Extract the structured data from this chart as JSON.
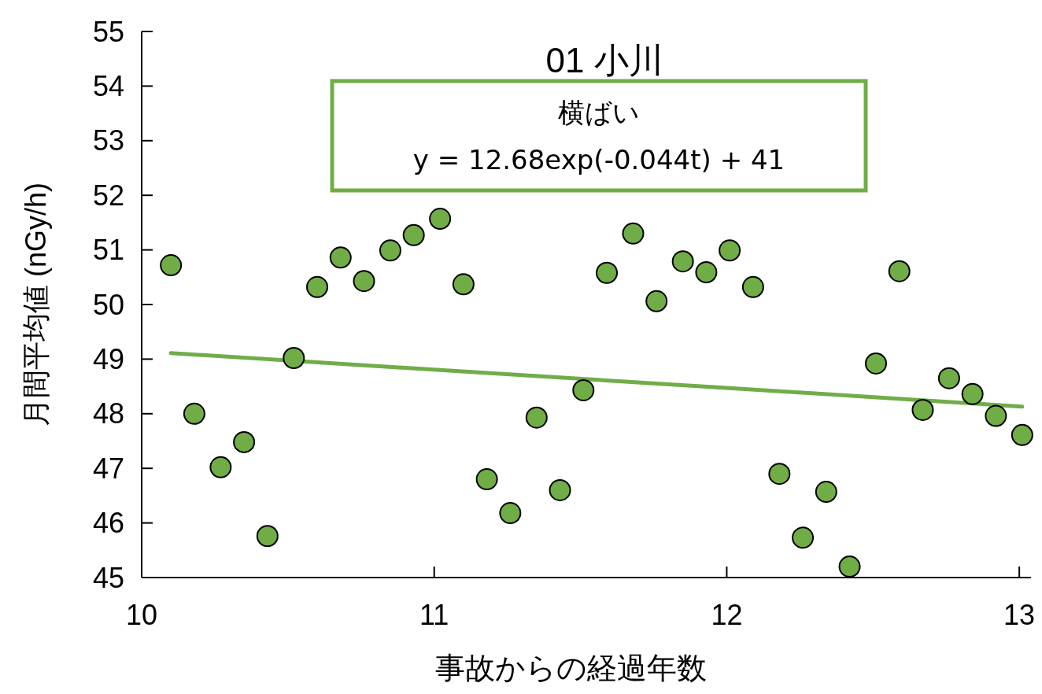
{
  "chart_data": {
    "type": "scatter",
    "title": "01 小川",
    "xlabel": "事故からの経過年数",
    "ylabel": "月間平均値 (nGy/h)",
    "annotations": [
      "横ばい",
      "y = 12.68exp(-0.044t) + 41"
    ],
    "xlim": [
      10,
      13.04
    ],
    "ylim": [
      45,
      55
    ],
    "xticks": [
      10,
      11,
      12,
      13
    ],
    "yticks": [
      45,
      46,
      47,
      48,
      49,
      50,
      51,
      52,
      53,
      54,
      55
    ],
    "grid": false,
    "series": [
      {
        "marker": "circle",
        "color": "#70ad47",
        "x": [
          10.1,
          10.18,
          10.27,
          10.35,
          10.43,
          10.52,
          10.6,
          10.68,
          10.76,
          10.85,
          10.93,
          11.02,
          11.1,
          11.18,
          11.26,
          11.35,
          11.43,
          11.51,
          11.59,
          11.68,
          11.76,
          11.85,
          11.93,
          12.01,
          12.09,
          12.18,
          12.26,
          12.34,
          12.42,
          12.51,
          12.59,
          12.67,
          12.76,
          12.84,
          12.92,
          13.01
        ],
        "values": [
          50.72,
          48.0,
          47.02,
          47.48,
          45.76,
          49.02,
          50.32,
          50.86,
          50.43,
          50.99,
          51.27,
          51.57,
          50.37,
          46.8,
          46.18,
          47.93,
          46.6,
          48.43,
          50.58,
          51.3,
          50.06,
          50.79,
          50.59,
          50.99,
          50.32,
          46.9,
          45.73,
          46.57,
          45.2,
          48.92,
          50.61,
          48.07,
          48.65,
          48.36,
          47.96,
          47.61
        ]
      },
      {
        "type": "line",
        "color": "#70ad47",
        "line_style": "solid",
        "x": [
          10.1,
          11.02,
          12.01,
          13.01
        ],
        "values": [
          49.11,
          48.8,
          48.47,
          48.13
        ]
      }
    ]
  }
}
